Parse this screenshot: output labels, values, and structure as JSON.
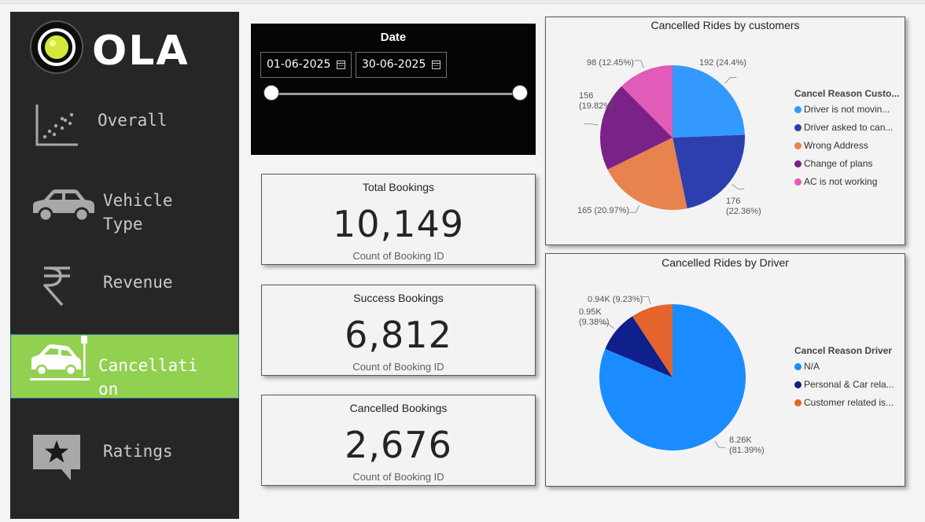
{
  "logo": {
    "text": "OLA"
  },
  "sidebar": {
    "items": [
      {
        "label": "Overall",
        "icon": "scatter-chart-icon"
      },
      {
        "label": "Vehicle\nType",
        "icon": "car-icon"
      },
      {
        "label": "Revenue",
        "icon": "rupee-icon"
      },
      {
        "label": "Cancellati\non",
        "icon": "car-crash-icon",
        "active": true
      },
      {
        "label": "Ratings",
        "icon": "star-chat-icon"
      }
    ]
  },
  "date_slicer": {
    "title": "Date",
    "start": "01-06-2025",
    "end": "30-06-2025"
  },
  "kpis": [
    {
      "title": "Total Bookings",
      "value": "10,149",
      "subtitle": "Count of Booking ID"
    },
    {
      "title": "Success Bookings",
      "value": "6,812",
      "subtitle": "Count of Booking ID"
    },
    {
      "title": "Cancelled Bookings",
      "value": "2,676",
      "subtitle": "Count of Booking ID"
    }
  ],
  "chart_data": [
    {
      "type": "pie",
      "title": "Cancelled Rides by customers",
      "legend_title": "Cancel Reason Custo...",
      "legend_position": "right",
      "slices": [
        {
          "name": "Driver is not movin...",
          "value": 192,
          "label": "192 (24.4%)",
          "color": "#3399ff"
        },
        {
          "name": "Driver asked to can...",
          "value": 176,
          "label": "176\n(22.36%)",
          "color": "#2d3fae"
        },
        {
          "name": "Wrong Address",
          "value": 165,
          "label": "165 (20.97%)",
          "color": "#e8824f"
        },
        {
          "name": "Change of plans",
          "value": 156,
          "label": "156\n(19.82%)",
          "color": "#7a2288"
        },
        {
          "name": "AC is not working",
          "value": 98,
          "label": "98 (12.45%)",
          "color": "#e05cb8"
        }
      ]
    },
    {
      "type": "pie",
      "title": "Cancelled Rides by Driver",
      "legend_title": "Cancel Reason Driver",
      "legend_position": "right",
      "slices": [
        {
          "name": "N/A",
          "value": 8260,
          "label": "8.26K\n(81.39%)",
          "color": "#1a8cff"
        },
        {
          "name": "Personal & Car rela...",
          "value": 950,
          "label": "0.95K\n(9.38%)",
          "color": "#0f1f8c"
        },
        {
          "name": "Customer related is...",
          "value": 940,
          "label": "0.94K (9.23%)",
          "color": "#e3652d"
        }
      ]
    }
  ]
}
